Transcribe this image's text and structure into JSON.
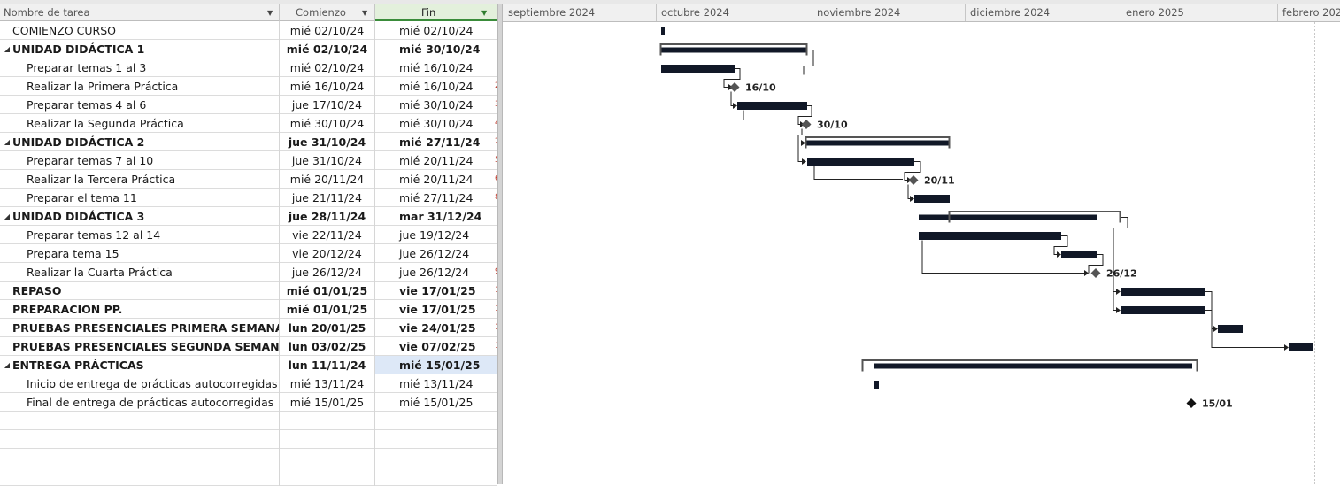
{
  "columns": {
    "name": "Nombre de tarea",
    "start": "Comienzo",
    "end": "Fin"
  },
  "tasks": [
    {
      "name": "COMIENZO CURSO",
      "start": "mié 02/10/24",
      "end": "mié 02/10/24",
      "level": 0,
      "summary": false,
      "bold": false,
      "edge": ""
    },
    {
      "name": "UNIDAD DIDÁCTICA 1",
      "start": "mié 02/10/24",
      "end": "mié 30/10/24",
      "level": 0,
      "summary": true,
      "bold": true,
      "edge": ""
    },
    {
      "name": "Preparar temas 1 al 3",
      "start": "mié 02/10/24",
      "end": "mié 16/10/24",
      "level": 1,
      "summary": false,
      "bold": false,
      "edge": ""
    },
    {
      "name": "Realizar la Primera Práctica",
      "start": "mié 16/10/24",
      "end": "mié 16/10/24",
      "level": 1,
      "summary": false,
      "bold": false,
      "edge": "2"
    },
    {
      "name": "Preparar temas 4 al 6",
      "start": "jue 17/10/24",
      "end": "mié 30/10/24",
      "level": 1,
      "summary": false,
      "bold": false,
      "edge": "3"
    },
    {
      "name": "Realizar la Segunda Práctica",
      "start": "mié 30/10/24",
      "end": "mié 30/10/24",
      "level": 1,
      "summary": false,
      "bold": false,
      "edge": "4"
    },
    {
      "name": "UNIDAD DIDÁCTICA 2",
      "start": "jue 31/10/24",
      "end": "mié 27/11/24",
      "level": 0,
      "summary": true,
      "bold": true,
      "edge": "2"
    },
    {
      "name": "Preparar temas 7 al 10",
      "start": "jue 31/10/24",
      "end": "mié 20/11/24",
      "level": 1,
      "summary": false,
      "bold": false,
      "edge": "5"
    },
    {
      "name": "Realizar la Tercera Práctica",
      "start": "mié 20/11/24",
      "end": "mié 20/11/24",
      "level": 1,
      "summary": false,
      "bold": false,
      "edge": "6"
    },
    {
      "name": "Preparar el tema 11",
      "start": "jue 21/11/24",
      "end": "mié 27/11/24",
      "level": 1,
      "summary": false,
      "bold": false,
      "edge": "8"
    },
    {
      "name": "UNIDAD DIDÁCTICA 3",
      "start": "jue 28/11/24",
      "end": "mar 31/12/24",
      "level": 0,
      "summary": true,
      "bold": true,
      "edge": ""
    },
    {
      "name": "Preparar temas 12 al 14",
      "start": "vie 22/11/24",
      "end": "jue 19/12/24",
      "level": 1,
      "summary": false,
      "bold": false,
      "edge": ""
    },
    {
      "name": "Prepara tema 15",
      "start": "vie 20/12/24",
      "end": "jue 26/12/24",
      "level": 1,
      "summary": false,
      "bold": false,
      "edge": ""
    },
    {
      "name": "Realizar la Cuarta Práctica",
      "start": "jue 26/12/24",
      "end": "jue 26/12/24",
      "level": 1,
      "summary": false,
      "bold": false,
      "edge": "9"
    },
    {
      "name": "REPASO",
      "start": "mié 01/01/25",
      "end": "vie 17/01/25",
      "level": 0,
      "summary": false,
      "bold": true,
      "edge": "1"
    },
    {
      "name": "PREPARACION PP.",
      "start": "mié 01/01/25",
      "end": "vie 17/01/25",
      "level": 0,
      "summary": false,
      "bold": true,
      "edge": "1"
    },
    {
      "name": "PRUEBAS PRESENCIALES PRIMERA SEMANA",
      "start": "lun 20/01/25",
      "end": "vie 24/01/25",
      "level": 0,
      "summary": false,
      "bold": true,
      "edge": "1"
    },
    {
      "name": "PRUEBAS PRESENCIALES SEGUNDA SEMANA",
      "start": "lun 03/02/25",
      "end": "vie 07/02/25",
      "level": 0,
      "summary": false,
      "bold": true,
      "edge": "1"
    },
    {
      "name": "ENTREGA PRÁCTICAS",
      "start": "lun 11/11/24",
      "end": "mié 15/01/25",
      "level": 0,
      "summary": true,
      "bold": true,
      "edge": "",
      "selected": true
    },
    {
      "name": "Inicio de entrega de prácticas autocorregidas",
      "start": "mié 13/11/24",
      "end": "mié 13/11/24",
      "level": 1,
      "summary": false,
      "bold": false,
      "edge": ""
    },
    {
      "name": "Final de entrega de prácticas autocorregidas",
      "start": "mié 15/01/25",
      "end": "mié 15/01/25",
      "level": 1,
      "summary": false,
      "bold": false,
      "edge": ""
    }
  ],
  "empty_rows": 4,
  "timeline": {
    "months": [
      "septiembre 2024",
      "octubre 2024",
      "noviembre 2024",
      "diciembre 2024",
      "enero 2025",
      "febrero 202"
    ]
  },
  "milestones": {
    "m1": "16/10",
    "m2": "30/10",
    "m3": "20/11",
    "m4": "26/12",
    "m5": "15/01"
  },
  "colors": {
    "task_bar": "#111827",
    "summary_bar": "#555555",
    "milestone": "#555555",
    "milestone_final": "#111111",
    "status_line": "#3a8c3a",
    "selection": "#dde8f7"
  }
}
